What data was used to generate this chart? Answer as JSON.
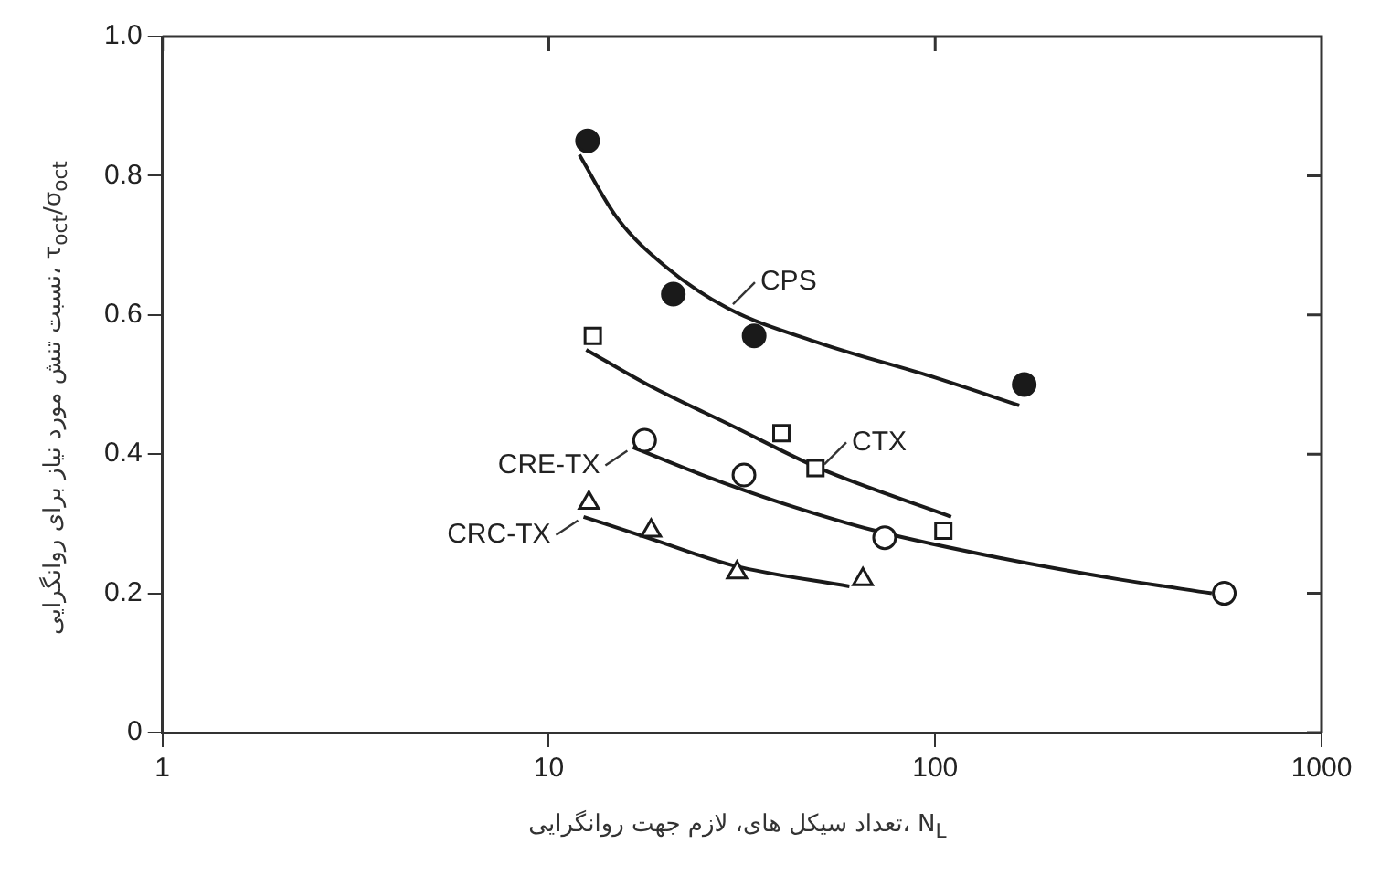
{
  "chart_data": {
    "type": "scatter",
    "xlabel": "تعداد سیکل های، لازم جهت روانگرایی، N$_{L}$",
    "ylabel": "نسبت تنش مورد نیاز برای روانگرایی، τ$_{oct}$/σ$_{oct}$",
    "log": "x",
    "grid": false,
    "legend": false,
    "xlim": [
      1,
      1000
    ],
    "xticks": [
      1,
      10,
      100,
      1000
    ],
    "ylim": [
      0,
      1
    ],
    "yticks": [
      0,
      0.2,
      0.4,
      0.6,
      0.8,
      {
        "value": 1,
        "label": "1.0"
      }
    ],
    "series": [
      {
        "marker": "circle",
        "color": "#1a1a1a",
        "x": [
          12.6,
          21,
          34,
          170
        ],
        "values": [
          0.85,
          0.63,
          0.57,
          0.5
        ]
      },
      {
        "marker": "square",
        "color": "#1a1a1a",
        "x": [
          13,
          40,
          49,
          105
        ],
        "values": [
          0.57,
          0.43,
          0.38,
          0.29
        ]
      },
      {
        "marker": "circle",
        "color": "#1a1a1a",
        "x": [
          17.7,
          32,
          74,
          560
        ],
        "values": [
          0.42,
          0.37,
          0.28,
          0.2
        ]
      },
      {
        "marker": "triangle",
        "color": "#1a1a1a",
        "x": [
          12.7,
          18.4,
          30.7,
          65
        ],
        "values": [
          0.33,
          0.29,
          0.23,
          0.22
        ]
      },
      {
        "type": "line",
        "name": "CPS",
        "marker": "none",
        "color": "#1a1a1a",
        "x": [
          12,
          15,
          20,
          29,
          50,
          100,
          165
        ],
        "values": [
          0.83,
          0.74,
          0.67,
          0.61,
          0.56,
          0.51,
          0.47
        ]
      },
      {
        "type": "line",
        "name": "CTX",
        "marker": "none",
        "color": "#1a1a1a",
        "x": [
          12.5,
          18,
          30,
          50,
          110
        ],
        "values": [
          0.55,
          0.5,
          0.44,
          0.38,
          0.31
        ]
      },
      {
        "type": "line",
        "name": "CRE-TX",
        "marker": "none",
        "color": "#1a1a1a",
        "x": [
          16.5,
          25,
          40,
          70,
          150,
          300,
          520
        ],
        "values": [
          0.41,
          0.37,
          0.33,
          0.29,
          0.25,
          0.22,
          0.2
        ]
      },
      {
        "type": "line",
        "name": "CRC-TX",
        "marker": "none",
        "color": "#1a1a1a",
        "x": [
          12.3,
          18,
          30,
          60
        ],
        "values": [
          0.31,
          0.28,
          0.24,
          0.21
        ]
      }
    ]
  }
}
